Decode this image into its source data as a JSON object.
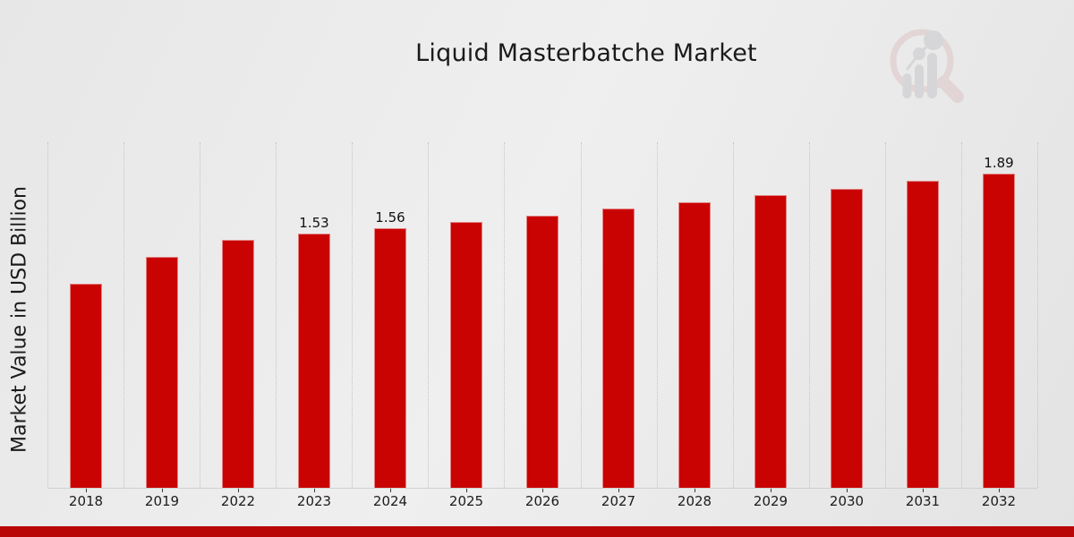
{
  "title": "Liquid Masterbatche Market",
  "y_axis_label": "Market Value in USD Billion",
  "chart_data": {
    "type": "bar",
    "title": "Liquid Masterbatche Market",
    "xlabel": "",
    "ylabel": "Market Value in USD Billion",
    "categories": [
      "2018",
      "2019",
      "2022",
      "2023",
      "2024",
      "2025",
      "2026",
      "2027",
      "2028",
      "2029",
      "2030",
      "2031",
      "2032"
    ],
    "values": [
      1.23,
      1.39,
      1.49,
      1.53,
      1.56,
      1.6,
      1.64,
      1.68,
      1.72,
      1.76,
      1.8,
      1.85,
      1.89
    ],
    "bar_labels": [
      "",
      "",
      "",
      "1.53",
      "1.56",
      "",
      "",
      "",
      "",
      "",
      "",
      "",
      "1.89"
    ],
    "unit": "USD Billion",
    "ylim": [
      0,
      2.08
    ],
    "grid": "vertical dotted gridlines at category boundaries",
    "legend": "none",
    "bar_color": "#c90202"
  },
  "colors": {
    "bar": "#c90202",
    "bottom_stripe": "#b90606",
    "gridline": "#c5c5c5",
    "text": "#1a1a1a",
    "logo_pink": "#ddc2c2",
    "logo_gray": "#c5c5c9"
  },
  "logo": {
    "name": "market-research-future-watermark"
  }
}
